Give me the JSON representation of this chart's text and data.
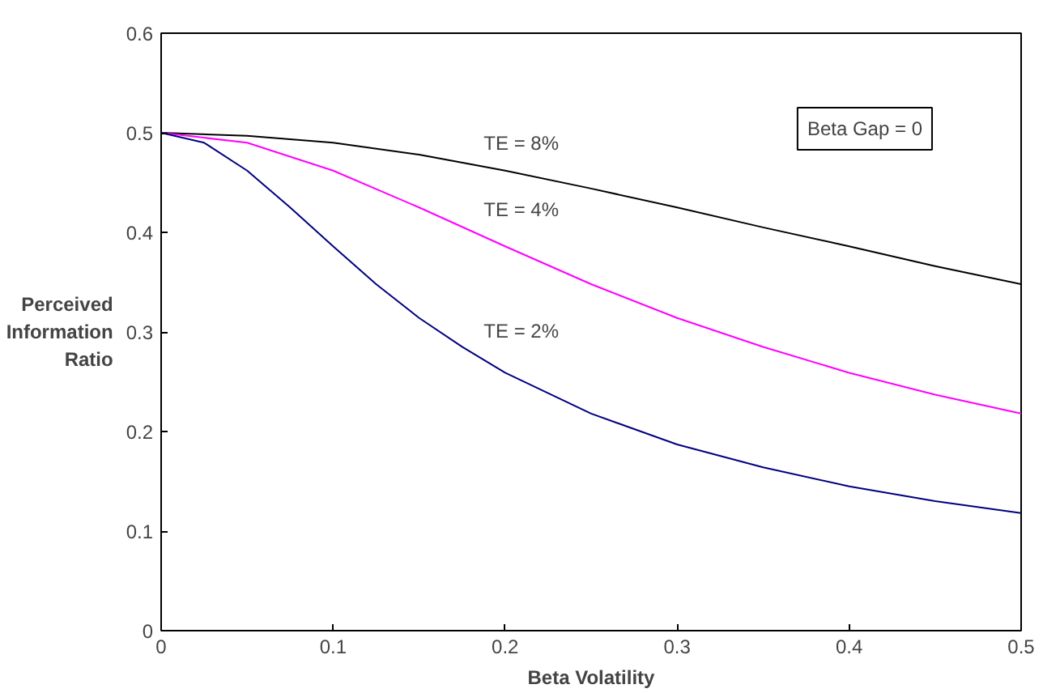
{
  "chart_data": {
    "type": "line",
    "xlabel": "Beta Volatility",
    "ylabel": "Perceived\nInformation\nRatio",
    "xlim": [
      0,
      0.5
    ],
    "ylim": [
      0,
      0.6
    ],
    "xticks": [
      0,
      0.1,
      0.2,
      0.3,
      0.4,
      0.5
    ],
    "yticks": [
      0,
      0.1,
      0.2,
      0.3,
      0.4,
      0.5,
      0.6
    ],
    "grid": false,
    "marker": "none",
    "line_style": "solid",
    "series": [
      {
        "name": "TE = 8%",
        "color": "#000000",
        "x": [
          0,
          0.05,
          0.1,
          0.15,
          0.2,
          0.25,
          0.3,
          0.35,
          0.4,
          0.45,
          0.5
        ],
        "values": [
          0.5,
          0.497,
          0.49,
          0.478,
          0.462,
          0.444,
          0.425,
          0.405,
          0.386,
          0.366,
          0.348
        ]
      },
      {
        "name": "TE = 4%",
        "color": "#ff00ff",
        "x": [
          0,
          0.05,
          0.1,
          0.15,
          0.2,
          0.25,
          0.3,
          0.35,
          0.4,
          0.45,
          0.5
        ],
        "values": [
          0.5,
          0.49,
          0.462,
          0.425,
          0.386,
          0.348,
          0.314,
          0.285,
          0.259,
          0.237,
          0.218
        ]
      },
      {
        "name": "TE = 2%",
        "color": "#000080",
        "x": [
          0,
          0.025,
          0.05,
          0.075,
          0.1,
          0.125,
          0.15,
          0.175,
          0.2,
          0.25,
          0.3,
          0.35,
          0.4,
          0.45,
          0.5
        ],
        "values": [
          0.5,
          0.49,
          0.462,
          0.425,
          0.386,
          0.348,
          0.314,
          0.285,
          0.259,
          0.218,
          0.187,
          0.164,
          0.145,
          0.13,
          0.118
        ]
      }
    ],
    "annotations": [
      "Beta Gap = 0"
    ]
  }
}
